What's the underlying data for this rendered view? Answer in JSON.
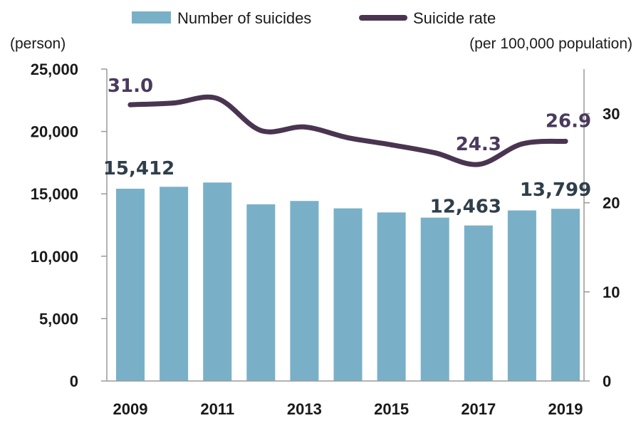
{
  "chart_data": {
    "type": "bar+line",
    "x": [
      2009,
      2010,
      2011,
      2012,
      2013,
      2014,
      2015,
      2016,
      2017,
      2018,
      2019
    ],
    "x_tick_labels": [
      "2009",
      "2011",
      "2013",
      "2015",
      "2017",
      "2019"
    ],
    "series": [
      {
        "name": "Number of suicides",
        "type": "bar",
        "axis": "left",
        "color": "#79b0c8",
        "values": [
          15412,
          15566,
          15906,
          14160,
          14427,
          13836,
          13513,
          13092,
          12463,
          13670,
          13799
        ]
      },
      {
        "name": "Suicide rate",
        "type": "line",
        "axis": "right",
        "color": "#4a3550",
        "values": [
          31.0,
          31.2,
          31.7,
          28.1,
          28.5,
          27.3,
          26.5,
          25.6,
          24.3,
          26.6,
          26.9
        ]
      }
    ],
    "y_left": {
      "unit_label": "(person)",
      "range": [
        0,
        25000
      ],
      "tick_values": [
        0,
        5000,
        10000,
        15000,
        20000,
        25000
      ],
      "tick_labels": [
        "0",
        "5,000",
        "10,000",
        "15,000",
        "20,000",
        "25,000"
      ]
    },
    "y_right": {
      "unit_label": "(per 100,000 population)",
      "range": [
        0,
        35
      ],
      "tick_values": [
        0,
        10,
        20,
        30
      ],
      "tick_labels": [
        "0",
        "10",
        "20",
        "30"
      ]
    },
    "annotations": [
      {
        "series": "Number of suicides",
        "x": 2009,
        "text": "15,412"
      },
      {
        "series": "Number of suicides",
        "x": 2017,
        "text": "12,463"
      },
      {
        "series": "Number of suicides",
        "x": 2019,
        "text": "13,799"
      },
      {
        "series": "Suicide rate",
        "x": 2009,
        "text": "31.0"
      },
      {
        "series": "Suicide rate",
        "x": 2017,
        "text": "24.3"
      },
      {
        "series": "Suicide rate",
        "x": 2019,
        "text": "26.9"
      }
    ],
    "legend": {
      "placement": "top",
      "entries": [
        "Number of suicides",
        "Suicide rate"
      ]
    },
    "grid": false
  }
}
